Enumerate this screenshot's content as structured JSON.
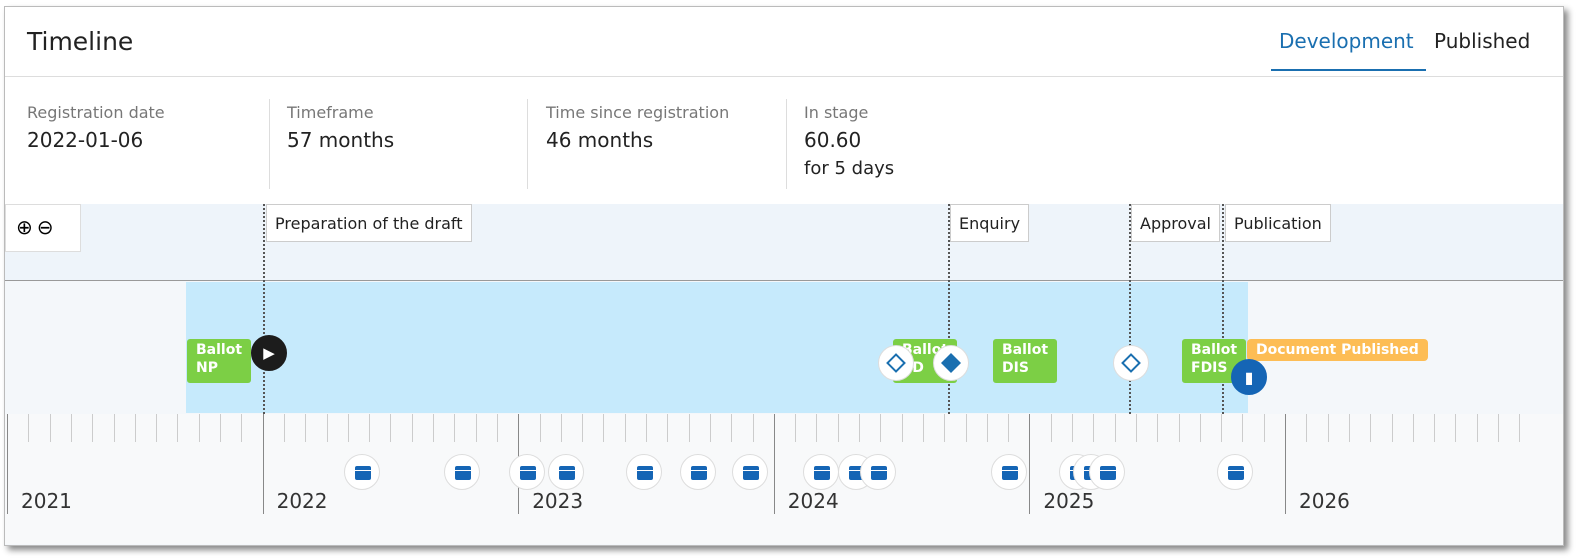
{
  "header": {
    "title": "Timeline",
    "tabs": [
      {
        "label": "Development",
        "active": true
      },
      {
        "label": "Published",
        "active": false
      }
    ]
  },
  "stats": [
    {
      "label": "Registration date",
      "value": "2022-01-06"
    },
    {
      "label": "Timeframe",
      "value": "57 months"
    },
    {
      "label": "Time since registration",
      "value": "46 months"
    },
    {
      "label": "In stage",
      "value": "60.60",
      "sub": "for 5 days"
    }
  ],
  "zoom": {
    "in_icon": "zoom-in-icon",
    "out_icon": "zoom-out-icon"
  },
  "stages": [
    "Preparation of the draft",
    "Enquiry",
    "Approval",
    "Publication"
  ],
  "ballots": [
    {
      "l1": "Ballot",
      "l2": "NP"
    },
    {
      "l1": "Ballot",
      "l2": "CD"
    },
    {
      "l1": "Ballot",
      "l2": "DIS"
    },
    {
      "l1": "Ballot",
      "l2": "FDIS"
    }
  ],
  "published_label": "Document Published",
  "years": [
    "2021",
    "2022",
    "2023",
    "2024",
    "2025",
    "2026"
  ],
  "colors": {
    "accent": "#1a6fb0",
    "ballot": "#7ccf45",
    "published": "#fdbd55",
    "span": "#c6eafc"
  }
}
